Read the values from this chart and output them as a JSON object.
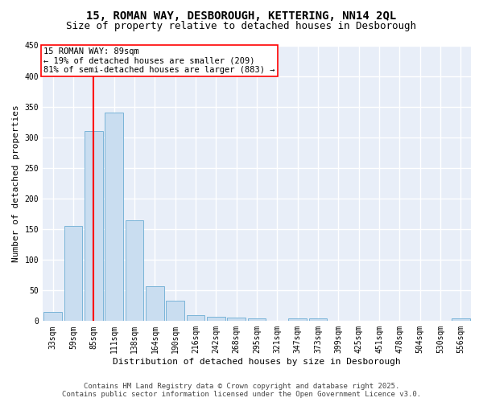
{
  "title1": "15, ROMAN WAY, DESBOROUGH, KETTERING, NN14 2QL",
  "title2": "Size of property relative to detached houses in Desborough",
  "xlabel": "Distribution of detached houses by size in Desborough",
  "ylabel": "Number of detached properties",
  "categories": [
    "33sqm",
    "59sqm",
    "85sqm",
    "111sqm",
    "138sqm",
    "164sqm",
    "190sqm",
    "216sqm",
    "242sqm",
    "268sqm",
    "295sqm",
    "321sqm",
    "347sqm",
    "373sqm",
    "399sqm",
    "425sqm",
    "451sqm",
    "478sqm",
    "504sqm",
    "530sqm",
    "556sqm"
  ],
  "values": [
    15,
    155,
    310,
    340,
    165,
    57,
    33,
    9,
    7,
    6,
    4,
    0,
    5,
    5,
    0,
    0,
    0,
    0,
    0,
    0,
    4
  ],
  "bar_color": "#c9ddf0",
  "bar_edge_color": "#7ab4d8",
  "vline_color": "red",
  "vline_pos": 2.0,
  "annotation_text": "15 ROMAN WAY: 89sqm\n← 19% of detached houses are smaller (209)\n81% of semi-detached houses are larger (883) →",
  "annotation_box_color": "white",
  "annotation_box_edge": "red",
  "ylim": [
    0,
    450
  ],
  "yticks": [
    0,
    50,
    100,
    150,
    200,
    250,
    300,
    350,
    400,
    450
  ],
  "background_color": "#e8eef8",
  "grid_color": "white",
  "footer_line1": "Contains HM Land Registry data © Crown copyright and database right 2025.",
  "footer_line2": "Contains public sector information licensed under the Open Government Licence v3.0.",
  "title_fontsize": 10,
  "subtitle_fontsize": 9,
  "axis_label_fontsize": 8,
  "tick_fontsize": 7,
  "annotation_fontsize": 7.5,
  "footer_fontsize": 6.5
}
